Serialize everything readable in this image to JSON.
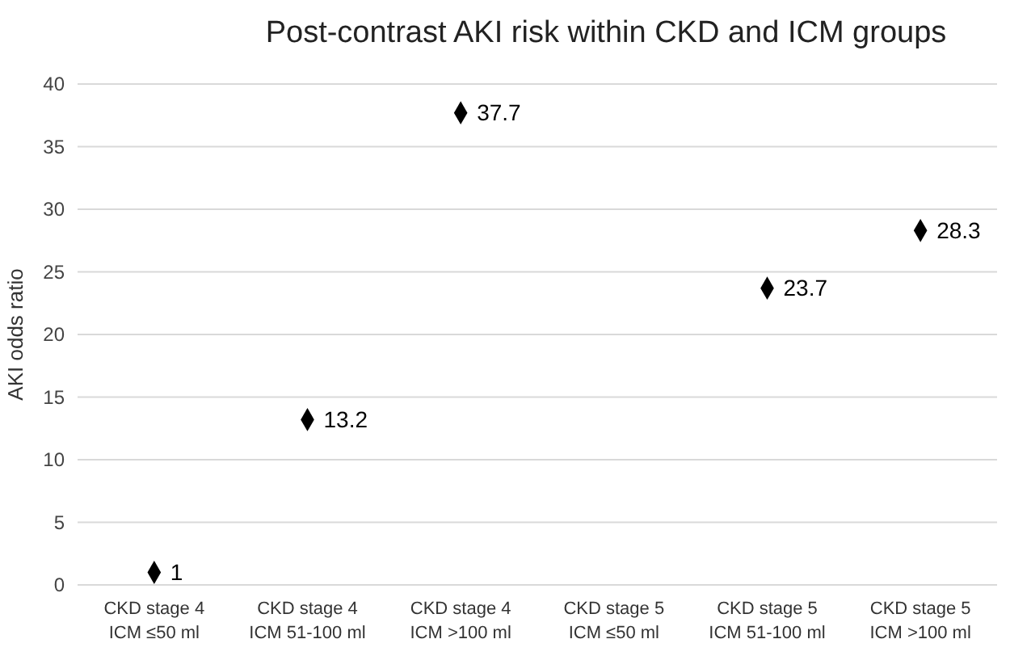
{
  "chart_data": {
    "type": "scatter",
    "title": "Post-contrast AKI risk within CKD and ICM groups",
    "ylabel": "AKI odds ratio",
    "categories": [
      "CKD stage 4\nICM ≤50 ml",
      "CKD stage 4\nICM 51-100 ml",
      "CKD stage 4\nICM >100 ml",
      "CKD stage 5\nICM ≤50 ml",
      "CKD stage 5\nICM 51-100 ml",
      "CKD stage 5\nICM >100 ml"
    ],
    "series": [
      {
        "color": "#000000",
        "values": [
          1,
          13.2,
          37.7,
          null,
          23.7,
          28.3
        ]
      }
    ],
    "ylim": [
      0,
      40
    ],
    "yticks": [
      0,
      5,
      10,
      15,
      20,
      25,
      30,
      35,
      40
    ],
    "grid": "y",
    "marker": "diamond",
    "data_labels": true
  }
}
